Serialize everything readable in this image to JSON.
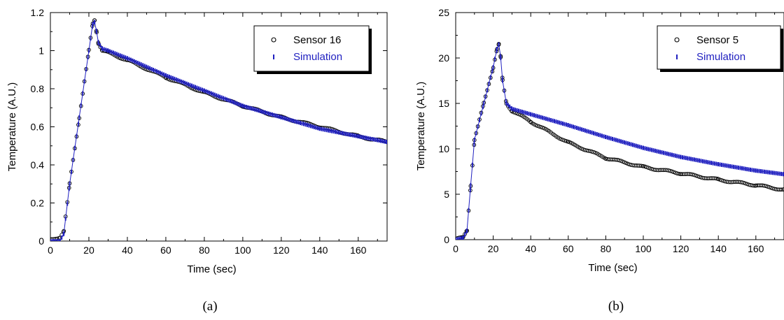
{
  "chart_data": [
    {
      "type": "scatter",
      "caption": "(a)",
      "xlabel": "Time (sec)",
      "ylabel": "Temperature (A.U.)",
      "xlim": [
        0,
        175
      ],
      "ylim": [
        0,
        1.2
      ],
      "xticks": [
        "0",
        "20",
        "40",
        "60",
        "80",
        "100",
        "120",
        "140",
        "160"
      ],
      "yticks": [
        "0",
        "0.2",
        "0.4",
        "0.6",
        "0.8",
        "1",
        "1.2"
      ],
      "grid": false,
      "legend_position": "top-right",
      "series": [
        {
          "name": "Sensor 16",
          "marker": "circle",
          "color": "#000000",
          "x": [
            0,
            5,
            7,
            10,
            15,
            20,
            22,
            23,
            24,
            25,
            27,
            30,
            40,
            60,
            80,
            100,
            120,
            140,
            160,
            175
          ],
          "y": [
            0.01,
            0.02,
            0.05,
            0.3,
            0.65,
            1.0,
            1.14,
            1.16,
            1.1,
            1.04,
            1.0,
            0.99,
            0.95,
            0.86,
            0.78,
            0.71,
            0.65,
            0.6,
            0.55,
            0.52
          ]
        },
        {
          "name": "Simulation",
          "marker": "vline",
          "color": "#2020c0",
          "x": [
            0,
            5,
            7,
            10,
            15,
            20,
            22,
            23,
            24,
            25,
            27,
            30,
            40,
            60,
            80,
            100,
            120,
            140,
            160,
            175
          ],
          "y": [
            0.0,
            0.0,
            0.04,
            0.3,
            0.65,
            1.0,
            1.14,
            1.15,
            1.1,
            1.04,
            1.01,
            1.0,
            0.96,
            0.87,
            0.79,
            0.71,
            0.65,
            0.59,
            0.55,
            0.52
          ]
        }
      ]
    },
    {
      "type": "scatter",
      "caption": "(b)",
      "xlabel": "Time (sec)",
      "ylabel": "Temperature (A.U.)",
      "xlim": [
        0,
        175
      ],
      "ylim": [
        0,
        25
      ],
      "xticks": [
        "0",
        "20",
        "40",
        "60",
        "80",
        "100",
        "120",
        "140",
        "160"
      ],
      "yticks": [
        "0",
        "5",
        "10",
        "15",
        "20",
        "25"
      ],
      "grid": false,
      "legend_position": "top-right",
      "series": [
        {
          "name": "Sensor 5",
          "marker": "circle",
          "color": "#000000",
          "x": [
            0,
            4,
            6,
            8,
            10,
            15,
            20,
            22,
            23,
            24,
            25,
            27,
            30,
            40,
            60,
            80,
            100,
            120,
            140,
            160,
            175
          ],
          "y": [
            0.1,
            0.2,
            1.0,
            6.0,
            11.0,
            15.0,
            19.0,
            21.0,
            21.5,
            20.0,
            17.5,
            15.0,
            14.2,
            13.0,
            10.7,
            9.0,
            8.0,
            7.3,
            6.6,
            6.0,
            5.5
          ]
        },
        {
          "name": "Simulation",
          "marker": "vline",
          "color": "#2020c0",
          "x": [
            0,
            4,
            6,
            8,
            10,
            15,
            20,
            22,
            23,
            24,
            25,
            27,
            30,
            40,
            60,
            80,
            100,
            120,
            140,
            160,
            175
          ],
          "y": [
            0.0,
            0.2,
            1.0,
            6.0,
            11.0,
            15.0,
            19.0,
            21.0,
            21.5,
            20.0,
            17.5,
            15.0,
            14.4,
            13.8,
            12.6,
            11.3,
            10.1,
            9.1,
            8.3,
            7.6,
            7.2
          ]
        }
      ]
    }
  ]
}
